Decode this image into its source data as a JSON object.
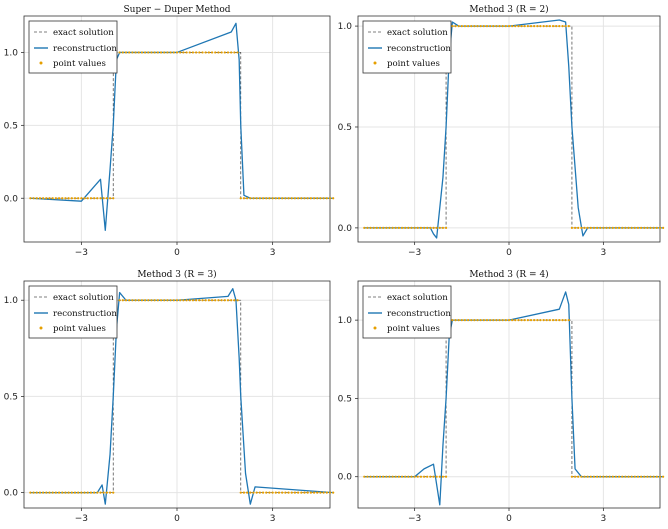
{
  "chart_data": [
    {
      "type": "line",
      "title": "Super − Duper Method",
      "xlim": [
        -4.8,
        4.8
      ],
      "ylim": [
        -0.3,
        1.25
      ],
      "xticks": [
        -3,
        0,
        3
      ],
      "xtick_labels": [
        "−3",
        "0",
        "3"
      ],
      "yticks": [
        0.0,
        0.5,
        1.0
      ],
      "ytick_labels": [
        "0.0",
        "0.5",
        "1.0"
      ],
      "grid": true,
      "legend_position": "top-left",
      "legend": [
        "exact solution",
        "reconstruction",
        "point values"
      ],
      "series": [
        {
          "name": "exact solution",
          "style": "dashed",
          "color": "#555555",
          "x": [
            -4.6,
            -2.0,
            -2.0,
            2.0,
            2.0,
            4.9
          ],
          "y": [
            0,
            0,
            1,
            1,
            0,
            0
          ]
        },
        {
          "name": "reconstruction",
          "style": "solid",
          "color": "#1f77b4",
          "x": [
            -4.6,
            -3.0,
            -2.6,
            -2.4,
            -2.25,
            -2.1,
            -2.0,
            -1.9,
            -1.8,
            0.0,
            1.7,
            1.85,
            1.95,
            2.0,
            2.1,
            2.3,
            4.9
          ],
          "y": [
            0.0,
            -0.02,
            0.08,
            0.13,
            -0.22,
            0.2,
            0.5,
            0.95,
            1.0,
            1.0,
            1.14,
            1.2,
            0.95,
            0.5,
            0.02,
            0.0,
            0.0
          ]
        },
        {
          "name": "point values",
          "style": "points",
          "color": "#e69f00",
          "x_range": [
            -4.6,
            4.9
          ],
          "step": 0.1,
          "y_rule": "1 where -2 < x < 2, else 0"
        }
      ]
    },
    {
      "type": "line",
      "title": "Method 3 (R = 2)",
      "xlim": [
        -4.8,
        4.8
      ],
      "ylim": [
        -0.07,
        1.05
      ],
      "xticks": [
        -3,
        0,
        3
      ],
      "xtick_labels": [
        "−3",
        "0",
        "3"
      ],
      "yticks": [
        0.0,
        0.5,
        1.0
      ],
      "ytick_labels": [
        "0.0",
        "0.5",
        "1.0"
      ],
      "grid": true,
      "legend_position": "top-left",
      "legend": [
        "exact solution",
        "reconstruction",
        "point values"
      ],
      "series": [
        {
          "name": "exact solution",
          "style": "dashed",
          "color": "#555555",
          "x": [
            -4.6,
            -2.0,
            -2.0,
            2.0,
            2.0,
            4.9
          ],
          "y": [
            0,
            0,
            1,
            1,
            0,
            0
          ]
        },
        {
          "name": "reconstruction",
          "style": "solid",
          "color": "#1f77b4",
          "x": [
            -4.6,
            -2.5,
            -2.4,
            -2.3,
            -2.1,
            -2.0,
            -1.9,
            -1.8,
            -1.6,
            0.0,
            1.6,
            1.8,
            1.9,
            2.0,
            2.2,
            2.35,
            2.5,
            4.9
          ],
          "y": [
            0.0,
            0.0,
            -0.03,
            -0.05,
            0.25,
            0.5,
            0.85,
            1.02,
            1.0,
            1.0,
            1.03,
            1.02,
            0.8,
            0.5,
            0.1,
            -0.04,
            0.0,
            0.0
          ]
        },
        {
          "name": "point values",
          "style": "points",
          "color": "#e69f00",
          "x_range": [
            -4.6,
            4.9
          ],
          "step": 0.1,
          "y_rule": "1 where -2 < x < 2, else 0"
        }
      ]
    },
    {
      "type": "line",
      "title": "Method 3 (R = 3)",
      "xlim": [
        -4.8,
        4.8
      ],
      "ylim": [
        -0.08,
        1.1
      ],
      "xticks": [
        -3,
        0,
        3
      ],
      "xtick_labels": [
        "−3",
        "0",
        "3"
      ],
      "yticks": [
        0.0,
        0.5,
        1.0
      ],
      "ytick_labels": [
        "0.0",
        "0.5",
        "1.0"
      ],
      "grid": true,
      "legend_position": "top-left",
      "legend": [
        "exact solution",
        "reconstruction",
        "point values"
      ],
      "series": [
        {
          "name": "exact solution",
          "style": "dashed",
          "color": "#555555",
          "x": [
            -4.6,
            -2.0,
            -2.0,
            2.0,
            2.0,
            4.9
          ],
          "y": [
            0,
            0,
            1,
            1,
            0,
            0
          ]
        },
        {
          "name": "reconstruction",
          "style": "solid",
          "color": "#1f77b4",
          "x": [
            -4.6,
            -2.5,
            -2.35,
            -2.25,
            -2.1,
            -2.0,
            -1.9,
            -1.8,
            -1.6,
            0.0,
            1.6,
            1.75,
            1.85,
            1.95,
            2.0,
            2.15,
            2.3,
            2.45,
            4.9
          ],
          "y": [
            0.0,
            0.0,
            0.04,
            -0.06,
            0.2,
            0.5,
            0.85,
            1.04,
            1.0,
            1.0,
            1.02,
            1.06,
            1.0,
            0.7,
            0.5,
            0.1,
            -0.06,
            0.03,
            0.0
          ]
        },
        {
          "name": "point values",
          "style": "points",
          "color": "#e69f00",
          "x_range": [
            -4.6,
            4.9
          ],
          "step": 0.1,
          "y_rule": "1 where -2 < x < 2, else 0"
        }
      ]
    },
    {
      "type": "line",
      "title": "Method 3 (R = 4)",
      "xlim": [
        -4.8,
        4.8
      ],
      "ylim": [
        -0.2,
        1.25
      ],
      "xticks": [
        -3,
        0,
        3
      ],
      "xtick_labels": [
        "−3",
        "0",
        "3"
      ],
      "yticks": [
        0.0,
        0.5,
        1.0
      ],
      "ytick_labels": [
        "0.0",
        "0.5",
        "1.0"
      ],
      "grid": true,
      "legend_position": "top-left",
      "legend": [
        "exact solution",
        "reconstruction",
        "point values"
      ],
      "series": [
        {
          "name": "exact solution",
          "style": "dashed",
          "color": "#555555",
          "x": [
            -4.6,
            -2.0,
            -2.0,
            2.0,
            2.0,
            4.9
          ],
          "y": [
            0,
            0,
            1,
            1,
            0,
            0
          ]
        },
        {
          "name": "reconstruction",
          "style": "solid",
          "color": "#1f77b4",
          "x": [
            -4.6,
            -3.0,
            -2.7,
            -2.4,
            -2.2,
            -2.1,
            -2.0,
            -1.9,
            -1.8,
            0.0,
            1.6,
            1.8,
            1.9,
            1.95,
            2.0,
            2.1,
            2.3,
            4.9
          ],
          "y": [
            0.0,
            0.0,
            0.05,
            0.08,
            -0.18,
            0.2,
            0.5,
            0.9,
            1.0,
            1.0,
            1.07,
            1.18,
            1.1,
            0.8,
            0.5,
            0.05,
            0.0,
            0.0
          ]
        },
        {
          "name": "point values",
          "style": "points",
          "color": "#e69f00",
          "x_range": [
            -4.6,
            4.9
          ],
          "step": 0.1,
          "y_rule": "1 where -2 < x < 2, else 0"
        }
      ]
    }
  ]
}
